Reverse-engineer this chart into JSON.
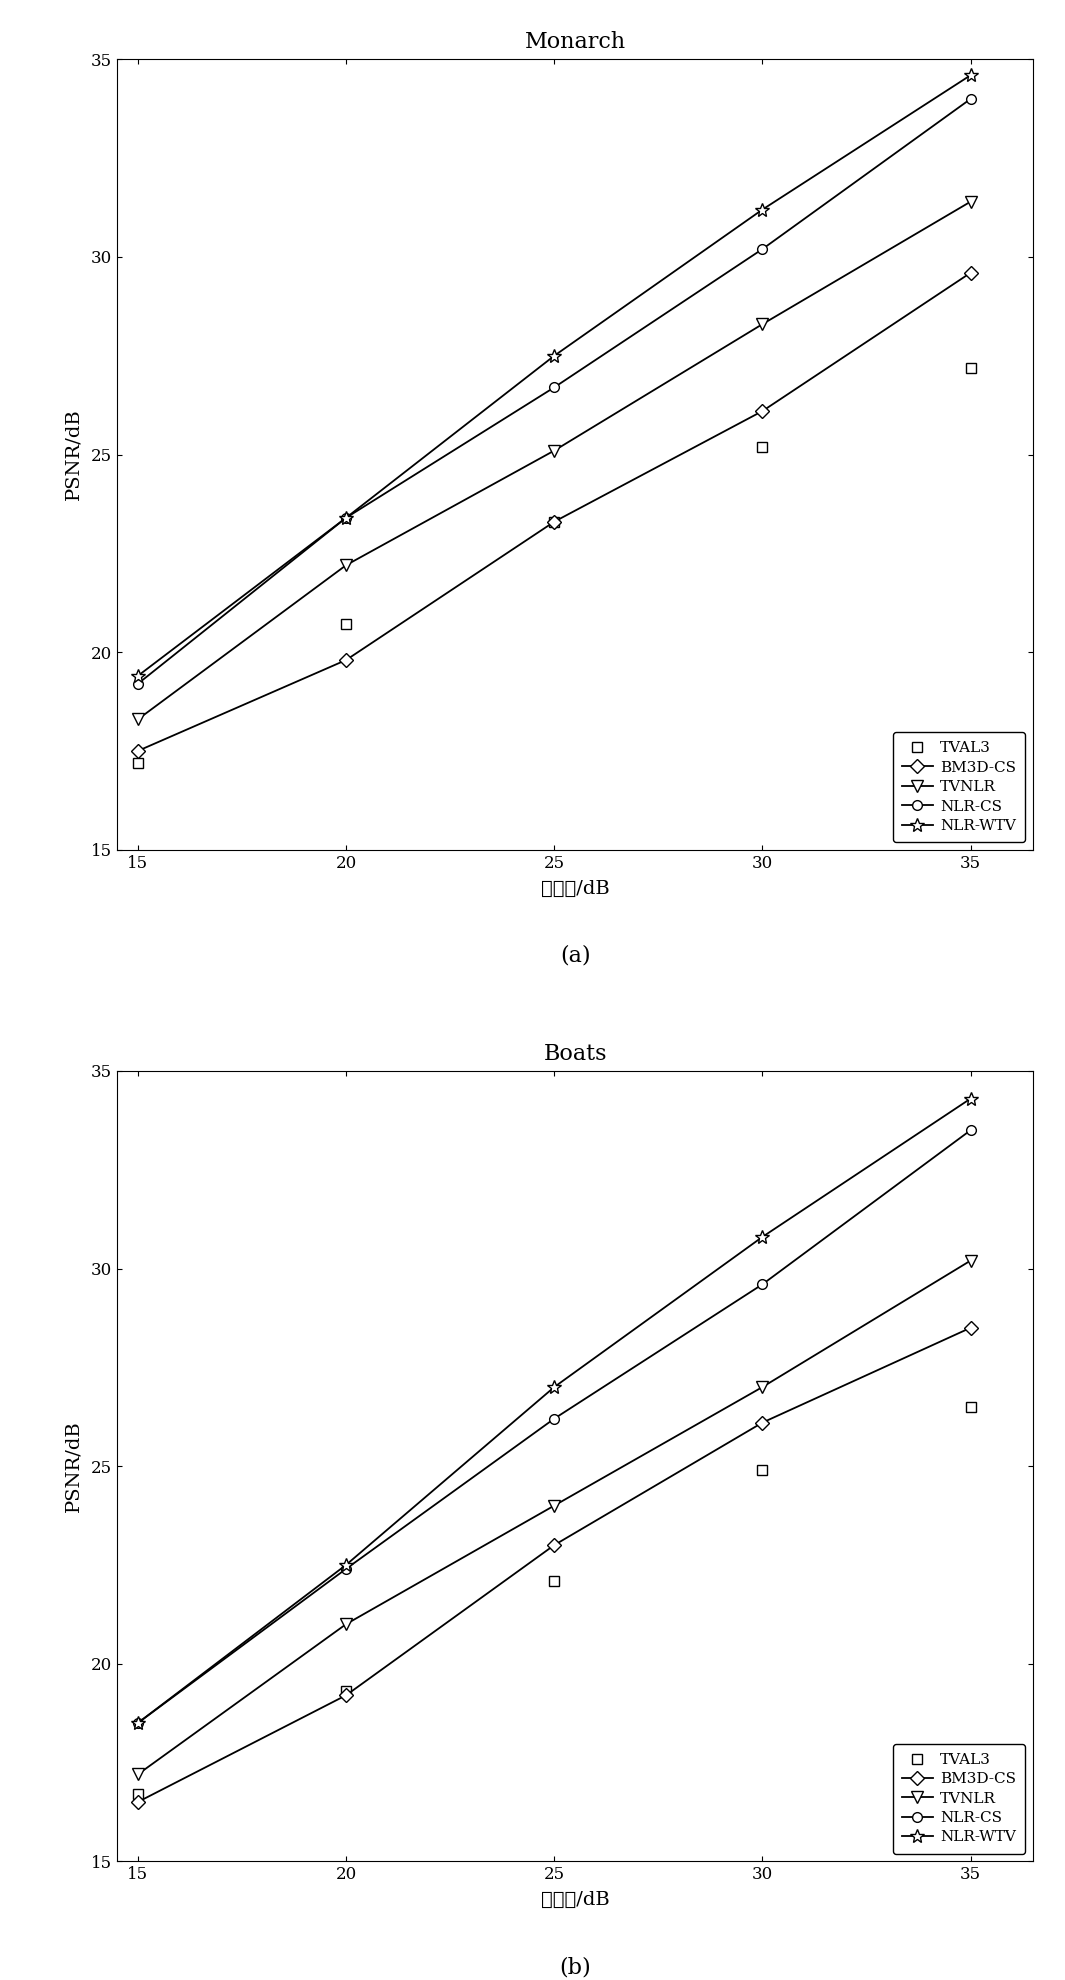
{
  "x": [
    15,
    20,
    25,
    30,
    35
  ],
  "monarch": {
    "title": "Monarch",
    "TVAL3": [
      17.2,
      20.7,
      23.3,
      25.2,
      27.2
    ],
    "BM3D-CS": [
      17.5,
      19.8,
      23.3,
      26.1,
      29.6
    ],
    "TVNLR": [
      18.3,
      22.2,
      25.1,
      28.3,
      31.4
    ],
    "NLR-CS": [
      19.2,
      23.4,
      26.7,
      30.2,
      34.0
    ],
    "NLR-WTV": [
      19.4,
      23.4,
      27.5,
      31.2,
      34.6
    ]
  },
  "boats": {
    "title": "Boats",
    "TVAL3": [
      16.7,
      19.3,
      22.1,
      24.9,
      26.5
    ],
    "BM3D-CS": [
      16.5,
      19.2,
      23.0,
      26.1,
      28.5
    ],
    "TVNLR": [
      17.2,
      21.0,
      24.0,
      27.0,
      30.2
    ],
    "NLR-CS": [
      18.5,
      22.4,
      26.2,
      29.6,
      33.5
    ],
    "NLR-WTV": [
      18.5,
      22.5,
      27.0,
      30.8,
      34.3
    ]
  },
  "xlabel": "信噪比/dB",
  "ylabel": "PSNR/dB",
  "xlim": [
    14.5,
    36.5
  ],
  "ylim": [
    15,
    35
  ],
  "yticks": [
    15,
    20,
    25,
    30,
    35
  ],
  "xticks": [
    15,
    20,
    25,
    30,
    35
  ],
  "legend_labels": [
    "TVAL3",
    "BM3D-CS",
    "TVNLR",
    "NLR-CS",
    "NLR-WTV"
  ],
  "line_color": "#000000",
  "label_a": "(a)",
  "label_b": "(b)"
}
